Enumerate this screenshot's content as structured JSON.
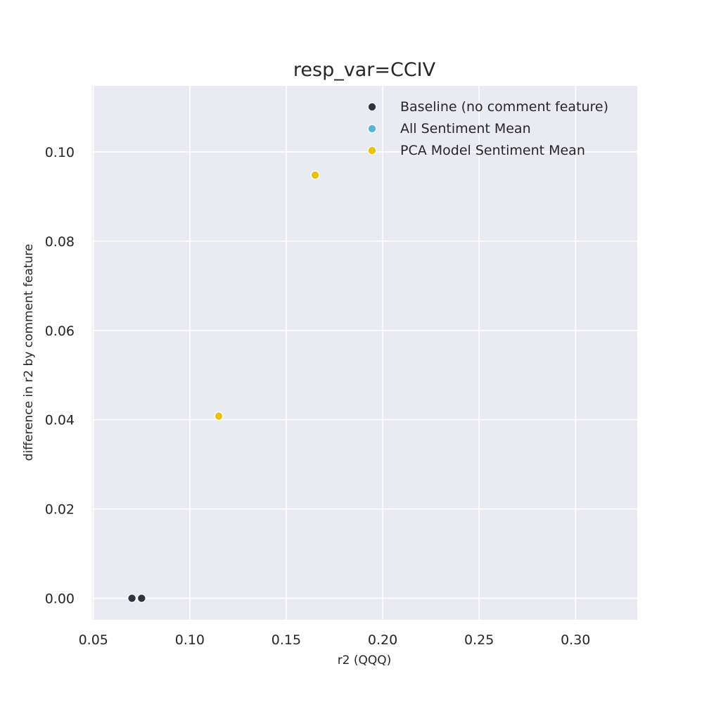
{
  "chart_data": {
    "type": "scatter",
    "title": "resp_var=CCIV",
    "xlabel": "r2 (QQQ)",
    "ylabel": "difference in r2 by comment feature",
    "xlim": [
      0.049,
      0.332
    ],
    "ylim": [
      -0.0048,
      0.1148
    ],
    "xticks": [
      "0.05",
      "0.10",
      "0.15",
      "0.20",
      "0.25",
      "0.30"
    ],
    "xtick_values": [
      0.05,
      0.1,
      0.15,
      0.2,
      0.25,
      0.3
    ],
    "yticks": [
      "0.00",
      "0.02",
      "0.04",
      "0.06",
      "0.08",
      "0.10"
    ],
    "ytick_values": [
      0.0,
      0.02,
      0.04,
      0.06,
      0.08,
      0.1
    ],
    "grid": true,
    "legend_position": "top-right",
    "series": [
      {
        "name": "Baseline (no comment feature)",
        "color": "#2e3440",
        "points": [
          [
            0.07,
            0.0
          ],
          [
            0.075,
            0.0
          ]
        ]
      },
      {
        "name": "All Sentiment Mean",
        "color": "#5ab4d2",
        "points": []
      },
      {
        "name": "PCA Model Sentiment Mean",
        "color": "#ebc20b",
        "points": [
          [
            0.115,
            0.0408
          ],
          [
            0.165,
            0.0948
          ]
        ]
      }
    ]
  }
}
